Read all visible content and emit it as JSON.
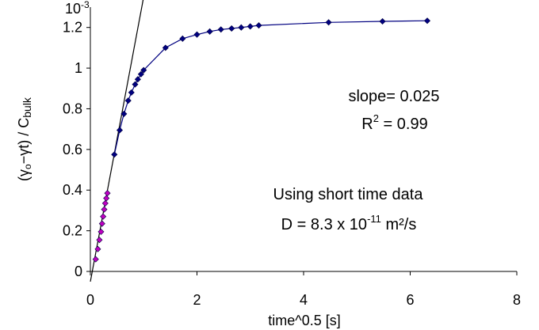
{
  "chart_data": {
    "type": "scatter",
    "title": "",
    "xlabel": "time^0.5 [s]",
    "ylabel_parts": [
      "(γ",
      "o",
      "−γt) / C",
      "bulk"
    ],
    "y_multiplier": "10",
    "y_multiplier_exp": "-3",
    "xlim": [
      0,
      8
    ],
    "ylim": [
      0,
      1.3
    ],
    "x_ticks": [
      0,
      2,
      4,
      6,
      8
    ],
    "x_tick_labels": [
      "0",
      "2",
      "4",
      "6",
      "8"
    ],
    "y_ticks": [
      0,
      0.2,
      0.4,
      0.6,
      0.8,
      1.0,
      1.2
    ],
    "y_tick_labels": [
      "0",
      "0.2",
      "0.4",
      "0.6",
      "0.8",
      "1",
      "1.2"
    ],
    "grid": false,
    "legend": "none",
    "series": [
      {
        "color": "#C000C0",
        "marker": "diamond",
        "line": false,
        "x": [
          0.1,
          0.14,
          0.17,
          0.2,
          0.22,
          0.24,
          0.26,
          0.28,
          0.3,
          0.32
        ],
        "y": [
          0.06,
          0.11,
          0.155,
          0.195,
          0.235,
          0.27,
          0.305,
          0.335,
          0.36,
          0.385
        ]
      },
      {
        "color": "#000080",
        "marker": "diamond",
        "line": true,
        "x": [
          0.45,
          0.55,
          0.63,
          0.71,
          0.77,
          0.84,
          0.89,
          0.95,
          1.0,
          1.41,
          1.73,
          2.0,
          2.24,
          2.45,
          2.65,
          2.83,
          3.0,
          3.16,
          4.47,
          5.48,
          6.32
        ],
        "y": [
          0.575,
          0.695,
          0.775,
          0.84,
          0.88,
          0.92,
          0.945,
          0.97,
          0.99,
          1.1,
          1.145,
          1.165,
          1.18,
          1.19,
          1.195,
          1.2,
          1.205,
          1.21,
          1.225,
          1.23,
          1.233
        ]
      }
    ],
    "fit_line": {
      "color": "#000000",
      "x": [
        0,
        1.0
      ],
      "y": [
        -0.05,
        1.35
      ]
    },
    "annotations": {
      "slope": "slope= 0.025",
      "r2_base": "R",
      "r2_exp": "2",
      "r2_rest": " = 0.99",
      "using": "Using short time data",
      "d_base": "D = 8.3 x 10",
      "d_exp": "-11",
      "d_rest": " m²/s"
    }
  }
}
